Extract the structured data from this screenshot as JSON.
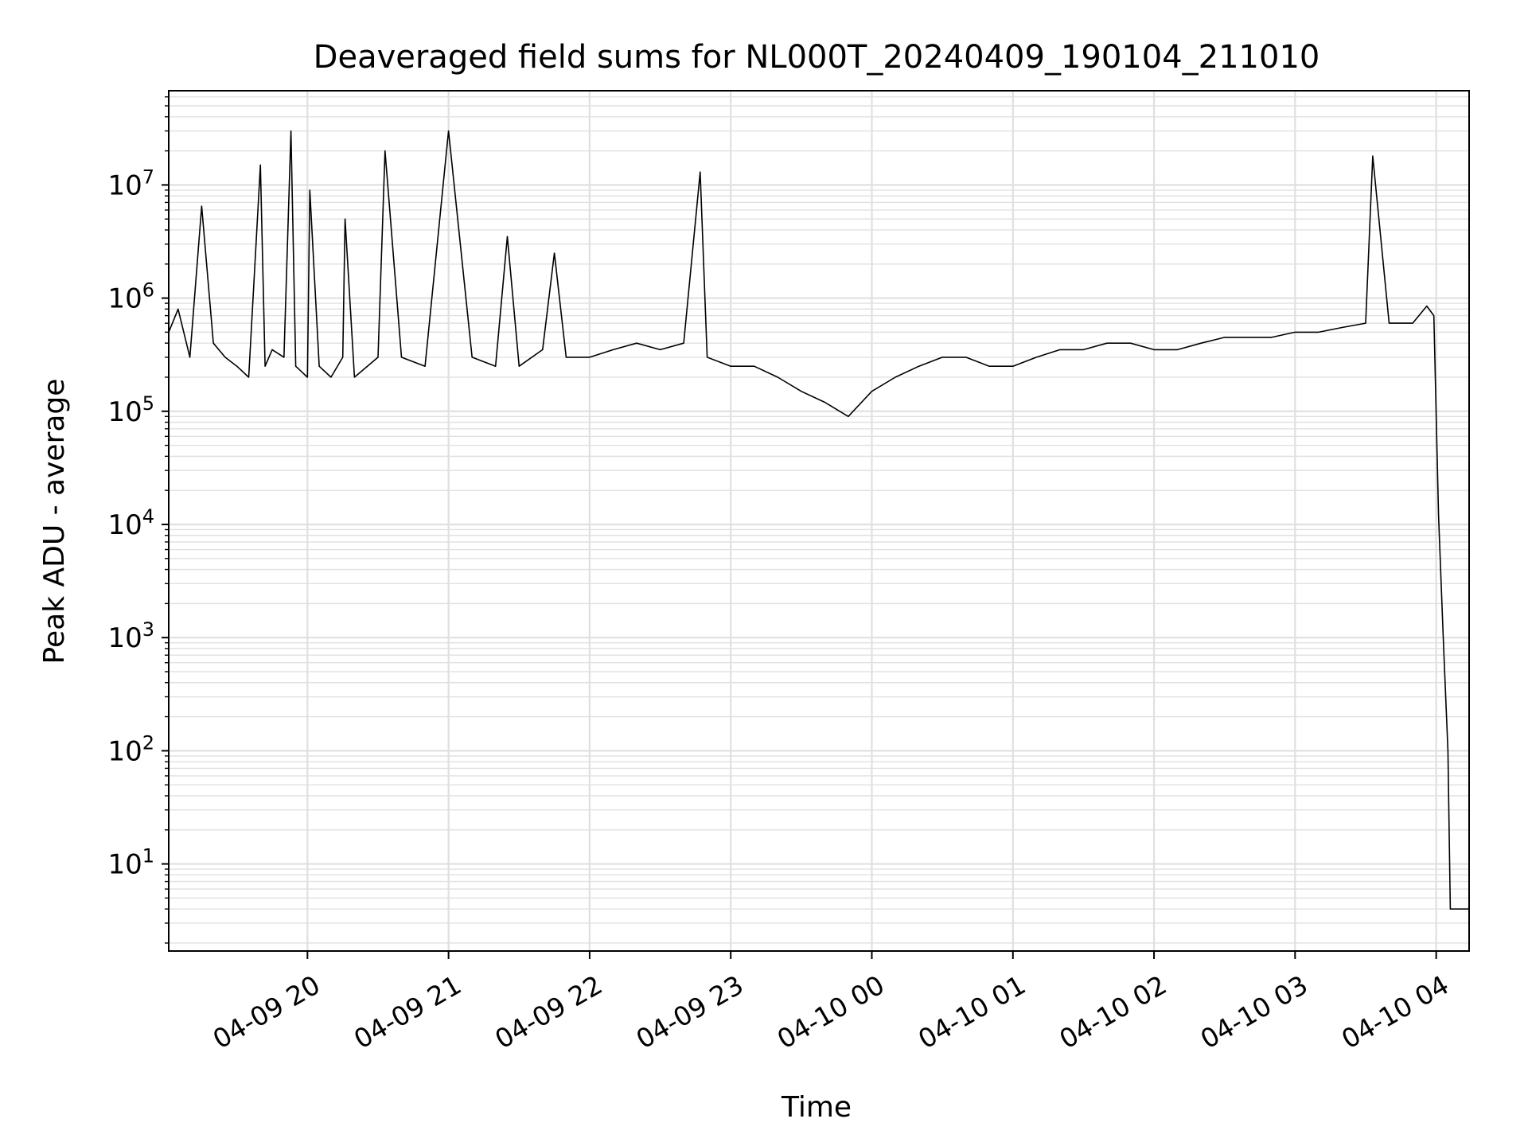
{
  "chart_data": {
    "type": "line",
    "title": "Deaveraged field sums for NL000T_20240409_190104_211010",
    "xlabel": "Time",
    "ylabel": "Peak ADU - average",
    "x_ticks": [
      "04-09 20",
      "04-09 21",
      "04-09 22",
      "04-09 23",
      "04-10 00",
      "04-10 01",
      "04-10 02",
      "04-10 03",
      "04-10 04"
    ],
    "y_ticks": [
      {
        "base": "10",
        "exp": "1",
        "value": 10
      },
      {
        "base": "10",
        "exp": "2",
        "value": 100
      },
      {
        "base": "10",
        "exp": "3",
        "value": 1000
      },
      {
        "base": "10",
        "exp": "4",
        "value": 10000
      },
      {
        "base": "10",
        "exp": "5",
        "value": 100000
      },
      {
        "base": "10",
        "exp": "6",
        "value": 1000000
      },
      {
        "base": "10",
        "exp": "7",
        "value": 10000000
      }
    ],
    "xlim": [
      "2024-04-09 19:01",
      "2024-04-10 04:14"
    ],
    "yscale": "log",
    "ylim": [
      1.7,
      68000000
    ],
    "grid": true,
    "line_color": "#000000",
    "grid_color": "#e0e0e0",
    "series": [
      {
        "x": [
          "2024-04-09 19:01",
          "2024-04-09 19:05",
          "2024-04-09 19:10",
          "2024-04-09 19:15",
          "2024-04-09 19:20",
          "2024-04-09 19:25",
          "2024-04-09 19:30",
          "2024-04-09 19:35",
          "2024-04-09 19:40",
          "2024-04-09 19:42",
          "2024-04-09 19:45",
          "2024-04-09 19:50",
          "2024-04-09 19:53",
          "2024-04-09 19:55",
          "2024-04-09 20:00",
          "2024-04-09 20:01",
          "2024-04-09 20:05",
          "2024-04-09 20:10",
          "2024-04-09 20:15",
          "2024-04-09 20:16",
          "2024-04-09 20:20",
          "2024-04-09 20:30",
          "2024-04-09 20:33",
          "2024-04-09 20:40",
          "2024-04-09 20:50",
          "2024-04-09 21:00",
          "2024-04-09 21:10",
          "2024-04-09 21:20",
          "2024-04-09 21:25",
          "2024-04-09 21:30",
          "2024-04-09 21:40",
          "2024-04-09 21:45",
          "2024-04-09 21:50",
          "2024-04-09 22:00",
          "2024-04-09 22:10",
          "2024-04-09 22:20",
          "2024-04-09 22:30",
          "2024-04-09 22:40",
          "2024-04-09 22:47",
          "2024-04-09 22:50",
          "2024-04-09 23:00",
          "2024-04-09 23:10",
          "2024-04-09 23:20",
          "2024-04-09 23:30",
          "2024-04-09 23:40",
          "2024-04-09 23:50",
          "2024-04-10 00:00",
          "2024-04-10 00:10",
          "2024-04-10 00:20",
          "2024-04-10 00:30",
          "2024-04-10 00:40",
          "2024-04-10 00:50",
          "2024-04-10 01:00",
          "2024-04-10 01:10",
          "2024-04-10 01:20",
          "2024-04-10 01:30",
          "2024-04-10 01:40",
          "2024-04-10 01:50",
          "2024-04-10 02:00",
          "2024-04-10 02:10",
          "2024-04-10 02:20",
          "2024-04-10 02:30",
          "2024-04-10 02:40",
          "2024-04-10 02:50",
          "2024-04-10 03:00",
          "2024-04-10 03:10",
          "2024-04-10 03:20",
          "2024-04-10 03:30",
          "2024-04-10 03:33",
          "2024-04-10 03:40",
          "2024-04-10 03:50",
          "2024-04-10 03:56",
          "2024-04-10 03:59",
          "2024-04-10 04:01",
          "2024-04-10 04:03",
          "2024-04-10 04:05",
          "2024-04-10 04:06",
          "2024-04-10 04:07",
          "2024-04-10 04:14"
        ],
        "y": [
          500000,
          800000,
          300000,
          6500000,
          400000,
          300000,
          250000,
          200000,
          15000000,
          250000,
          350000,
          300000,
          30000000,
          250000,
          200000,
          9000000,
          250000,
          200000,
          300000,
          5000000,
          200000,
          300000,
          20000000,
          300000,
          250000,
          30000000,
          300000,
          250000,
          3500000,
          250000,
          350000,
          2500000,
          300000,
          300000,
          350000,
          400000,
          350000,
          400000,
          13000000,
          300000,
          250000,
          250000,
          200000,
          150000,
          120000,
          90000,
          150000,
          200000,
          250000,
          300000,
          300000,
          250000,
          250000,
          300000,
          350000,
          350000,
          400000,
          400000,
          350000,
          350000,
          400000,
          450000,
          450000,
          450000,
          500000,
          500000,
          550000,
          600000,
          18000000,
          600000,
          600000,
          850000,
          700000,
          12000,
          1000,
          100,
          4,
          4,
          4
        ]
      }
    ]
  }
}
